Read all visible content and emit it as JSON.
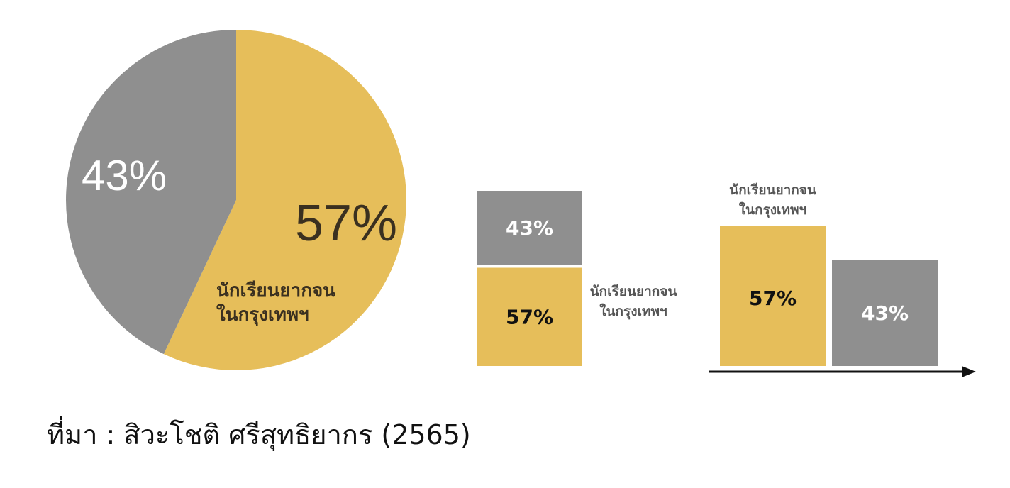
{
  "colors": {
    "gold": "#E6BE5A",
    "gray": "#8F8F8F",
    "dark": "#3A3020",
    "text": "#111111",
    "label": "#555555",
    "axis": "#111111"
  },
  "chart_data": [
    {
      "type": "pie",
      "slices": [
        {
          "label": "นักเรียนยากจน\nในกรุงเทพฯ",
          "value": 57,
          "value_label": "57%",
          "color": "#E6BE5A"
        },
        {
          "label": "",
          "value": 43,
          "value_label": "43%",
          "color": "#8F8F8F"
        }
      ]
    },
    {
      "type": "bar",
      "stacked": true,
      "categories": [
        ""
      ],
      "series": [
        {
          "name": "นักเรียนยากจน\nในกรุงเทพฯ",
          "values": [
            57
          ],
          "value_label": "57%",
          "color": "#E6BE5A"
        },
        {
          "name": "",
          "values": [
            43
          ],
          "value_label": "43%",
          "color": "#8F8F8F"
        }
      ]
    },
    {
      "type": "bar",
      "categories": [
        "นักเรียนยากจน\nในกรุงเทพฯ",
        ""
      ],
      "values": [
        57,
        43
      ],
      "value_labels": [
        "57%",
        "43%"
      ],
      "colors": [
        "#E6BE5A",
        "#8F8F8F"
      ],
      "x_axis_arrow": true
    }
  ],
  "source": "ที่มา : สิวะโชติ ศรีสุทธิยากร (2565)"
}
